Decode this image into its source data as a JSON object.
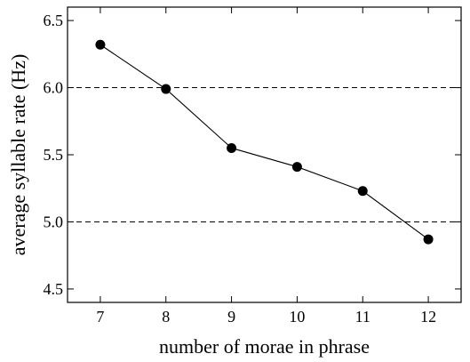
{
  "chart_data": {
    "type": "line",
    "title": "",
    "xlabel": "number of morae in phrase",
    "ylabel": "average syllable rate (Hz)",
    "x": [
      7,
      8,
      9,
      10,
      11,
      12
    ],
    "xtick_labels": [
      "7",
      "8",
      "9",
      "10",
      "11",
      "12"
    ],
    "ytick_values": [
      4.5,
      5.0,
      5.5,
      6.0,
      6.5
    ],
    "ytick_labels": [
      "4.5",
      "5.0",
      "5.5",
      "6.0",
      "6.5"
    ],
    "xlim": [
      6.5,
      12.5
    ],
    "ylim": [
      4.4,
      6.6
    ],
    "grid": "dashed horizontal lines at 5.0 and 6.0",
    "grid_lines_y": [
      5.0,
      6.0
    ],
    "legend": "none",
    "series": [
      {
        "values": [
          6.32,
          5.99,
          5.55,
          5.41,
          5.23,
          4.87
        ]
      }
    ],
    "colors": {
      "line": "#000000",
      "marker": "#000000"
    }
  }
}
